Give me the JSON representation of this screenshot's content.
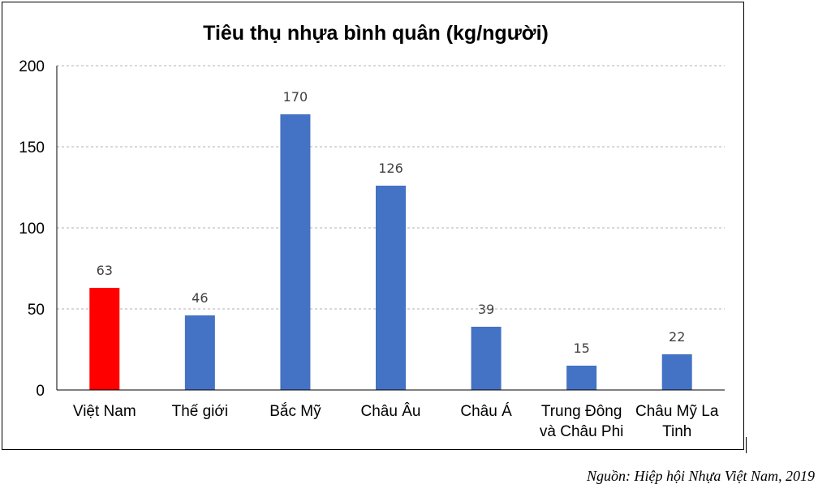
{
  "chart_data": {
    "type": "bar",
    "title": "Tiêu thụ nhựa bình quân (kg/người)",
    "xlabel": "",
    "ylabel": "",
    "categories": [
      [
        "Việt Nam"
      ],
      [
        "Thế giới"
      ],
      [
        "Bắc Mỹ"
      ],
      [
        "Châu Âu"
      ],
      [
        "Châu Á"
      ],
      [
        "Trung Đông",
        "và Châu Phi"
      ],
      [
        "Châu Mỹ La",
        "Tinh"
      ]
    ],
    "values": [
      63,
      46,
      170,
      126,
      39,
      15,
      22
    ],
    "data_labels": [
      "63",
      "46",
      "170",
      "126",
      "39",
      "15",
      "22"
    ],
    "bar_colors": [
      "#ff0000",
      "#4472c4",
      "#4472c4",
      "#4472c4",
      "#4472c4",
      "#4472c4",
      "#4472c4"
    ],
    "ylim": [
      0,
      200
    ],
    "yticks": [
      0,
      50,
      100,
      150,
      200
    ],
    "grid": true,
    "legend": "none"
  },
  "source": "Nguồn: Hiệp hội Nhựa Việt Nam, 2019"
}
